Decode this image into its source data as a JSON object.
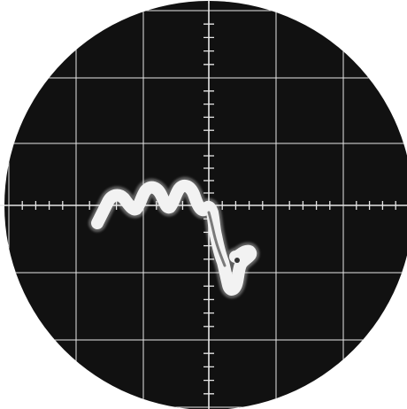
{
  "scene": {
    "kind": "oscilloscope-screen-photograph",
    "screen_color": "#111111",
    "graticule_color": "#e6e6e6",
    "trace_color": "#f2f2f2",
    "background_color": "#ffffff",
    "graticule": {
      "major_divisions_x": 6,
      "major_divisions_y": 6,
      "minor_ticks_per_division": 5
    }
  }
}
